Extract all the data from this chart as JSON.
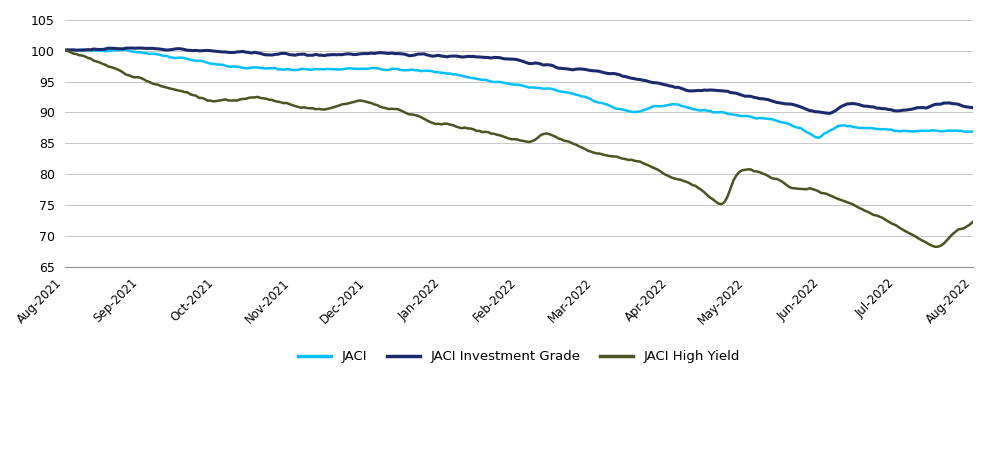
{
  "colors": {
    "jaci": "#00BFFF",
    "jaci_ig": "#1B2A6B",
    "jaci_hy": "#4B5320"
  },
  "legend_labels": [
    "JACI",
    "JACI Investment Grade",
    "JACI High Yield"
  ],
  "ylim": [
    65,
    105
  ],
  "yticks": [
    65,
    70,
    75,
    80,
    85,
    90,
    95,
    100,
    105
  ],
  "x_labels": [
    "Aug-2021",
    "Sep-2021",
    "Oct-2021",
    "Nov-2021",
    "Dec-2021",
    "Jan-2022",
    "Feb-2022",
    "Mar-2022",
    "Apr-2022",
    "May-2022",
    "Jun-2022",
    "Jul-2022",
    "Aug-2022"
  ],
  "jaci_n": 260,
  "jaci_keypoints": [
    [
      0,
      100
    ],
    [
      20,
      100.2
    ],
    [
      30,
      99.5
    ],
    [
      45,
      98.5
    ],
    [
      55,
      97.5
    ],
    [
      65,
      97.2
    ],
    [
      75,
      97.0
    ],
    [
      90,
      97.0
    ],
    [
      100,
      97.2
    ],
    [
      110,
      97.0
    ],
    [
      120,
      96.8
    ],
    [
      130,
      96.5
    ],
    [
      140,
      95.5
    ],
    [
      150,
      94.8
    ],
    [
      160,
      94.0
    ],
    [
      170,
      93.5
    ],
    [
      180,
      92.0
    ],
    [
      190,
      90.5
    ],
    [
      195,
      90.0
    ],
    [
      200,
      90.8
    ],
    [
      205,
      91.2
    ],
    [
      210,
      91.0
    ],
    [
      215,
      90.5
    ],
    [
      220,
      90.2
    ],
    [
      225,
      90.0
    ],
    [
      230,
      89.5
    ],
    [
      235,
      89.2
    ],
    [
      240,
      89.0
    ],
    [
      245,
      88.5
    ],
    [
      250,
      87.5
    ],
    [
      255,
      86.5
    ],
    [
      257,
      85.5
    ],
    [
      260,
      87.0
    ],
    [
      262,
      87.5
    ],
    [
      265,
      88.0
    ],
    [
      268,
      87.8
    ],
    [
      270,
      87.5
    ],
    [
      275,
      87.5
    ],
    [
      280,
      87.2
    ],
    [
      285,
      87.0
    ],
    [
      290,
      87.0
    ],
    [
      295,
      87.0
    ],
    [
      300,
      87.0
    ],
    [
      305,
      87.0
    ],
    [
      310,
      86.8
    ]
  ],
  "jaci_ig_keypoints": [
    [
      0,
      100
    ],
    [
      15,
      100.3
    ],
    [
      25,
      100.5
    ],
    [
      40,
      100.2
    ],
    [
      55,
      99.8
    ],
    [
      70,
      99.5
    ],
    [
      85,
      99.3
    ],
    [
      100,
      99.5
    ],
    [
      115,
      99.5
    ],
    [
      130,
      99.2
    ],
    [
      145,
      99.0
    ],
    [
      155,
      98.5
    ],
    [
      165,
      97.5
    ],
    [
      175,
      97.0
    ],
    [
      185,
      96.5
    ],
    [
      190,
      96.0
    ],
    [
      195,
      95.5
    ],
    [
      200,
      95.0
    ],
    [
      205,
      94.5
    ],
    [
      210,
      94.0
    ],
    [
      215,
      93.5
    ],
    [
      220,
      93.8
    ],
    [
      225,
      93.5
    ],
    [
      230,
      93.0
    ],
    [
      235,
      92.5
    ],
    [
      240,
      92.0
    ],
    [
      245,
      91.5
    ],
    [
      250,
      91.0
    ],
    [
      255,
      90.5
    ],
    [
      257,
      90.0
    ],
    [
      260,
      89.8
    ],
    [
      262,
      90.0
    ],
    [
      265,
      91.0
    ],
    [
      268,
      91.5
    ],
    [
      270,
      91.2
    ],
    [
      275,
      91.0
    ],
    [
      280,
      90.5
    ],
    [
      285,
      90.3
    ],
    [
      290,
      90.5
    ],
    [
      295,
      91.0
    ],
    [
      300,
      91.5
    ],
    [
      305,
      91.3
    ],
    [
      310,
      90.5
    ]
  ],
  "jaci_hy_keypoints": [
    [
      0,
      100
    ],
    [
      10,
      98.5
    ],
    [
      15,
      97.5
    ],
    [
      20,
      96.5
    ],
    [
      25,
      95.5
    ],
    [
      30,
      94.5
    ],
    [
      35,
      94.0
    ],
    [
      40,
      93.5
    ],
    [
      45,
      92.5
    ],
    [
      50,
      92.0
    ],
    [
      55,
      91.8
    ],
    [
      60,
      92.2
    ],
    [
      65,
      92.5
    ],
    [
      70,
      92.0
    ],
    [
      75,
      91.5
    ],
    [
      80,
      91.0
    ],
    [
      85,
      90.5
    ],
    [
      90,
      90.5
    ],
    [
      95,
      91.5
    ],
    [
      100,
      92.0
    ],
    [
      105,
      91.5
    ],
    [
      110,
      90.5
    ],
    [
      115,
      90.2
    ],
    [
      120,
      89.5
    ],
    [
      125,
      88.5
    ],
    [
      130,
      88.0
    ],
    [
      135,
      87.5
    ],
    [
      140,
      87.0
    ],
    [
      145,
      86.5
    ],
    [
      150,
      86.0
    ],
    [
      155,
      85.5
    ],
    [
      160,
      85.0
    ],
    [
      163,
      87.0
    ],
    [
      165,
      86.5
    ],
    [
      170,
      85.5
    ],
    [
      175,
      84.5
    ],
    [
      180,
      83.5
    ],
    [
      185,
      83.0
    ],
    [
      190,
      82.5
    ],
    [
      195,
      82.0
    ],
    [
      200,
      81.0
    ],
    [
      205,
      80.0
    ],
    [
      210,
      79.0
    ],
    [
      215,
      78.0
    ],
    [
      217,
      77.5
    ],
    [
      219,
      76.5
    ],
    [
      221,
      75.5
    ],
    [
      223,
      75.0
    ],
    [
      225,
      74.8
    ],
    [
      226,
      77.0
    ],
    [
      228,
      79.5
    ],
    [
      230,
      80.5
    ],
    [
      232,
      81.0
    ],
    [
      235,
      80.5
    ],
    [
      238,
      80.0
    ],
    [
      240,
      79.5
    ],
    [
      243,
      79.0
    ],
    [
      245,
      78.5
    ],
    [
      247,
      78.0
    ],
    [
      250,
      77.5
    ],
    [
      252,
      77.5
    ],
    [
      255,
      77.5
    ],
    [
      257,
      77.0
    ],
    [
      260,
      76.5
    ],
    [
      263,
      76.0
    ],
    [
      265,
      75.5
    ],
    [
      268,
      75.0
    ],
    [
      270,
      74.5
    ],
    [
      273,
      74.0
    ],
    [
      275,
      73.5
    ],
    [
      278,
      73.0
    ],
    [
      280,
      72.5
    ],
    [
      282,
      72.0
    ],
    [
      283,
      71.5
    ],
    [
      285,
      71.0
    ],
    [
      287,
      70.5
    ],
    [
      289,
      70.0
    ],
    [
      291,
      69.5
    ],
    [
      293,
      69.0
    ],
    [
      295,
      68.5
    ],
    [
      297,
      68.0
    ],
    [
      299,
      68.5
    ],
    [
      301,
      69.5
    ],
    [
      303,
      70.5
    ],
    [
      305,
      71.0
    ],
    [
      307,
      71.5
    ],
    [
      309,
      72.0
    ],
    [
      310,
      73.0
    ]
  ]
}
